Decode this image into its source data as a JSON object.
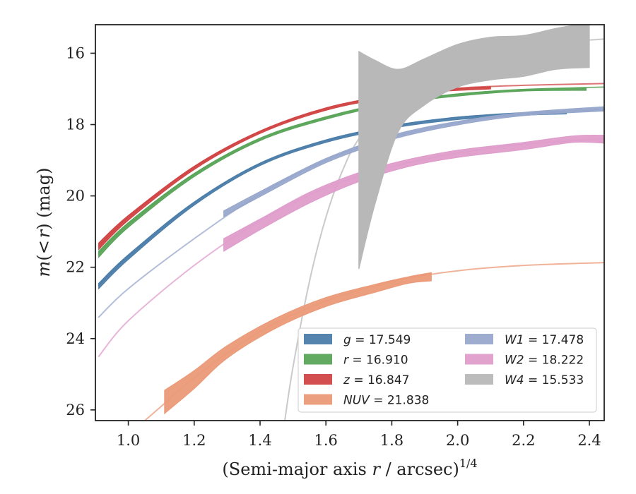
{
  "chart_data": {
    "type": "line",
    "xlabel_main": "(Semi-major axis ",
    "xlabel_var": "r",
    "xlabel_rest": " / arcsec)",
    "xlabel_sup": "1/4",
    "ylabel_m": "m",
    "ylabel_paren_open": "(",
    "ylabel_lt": "<",
    "ylabel_r": "r",
    "ylabel_rest": ") (mag)",
    "xlim": [
      0.9,
      2.445
    ],
    "ylim": [
      26.3,
      15.2
    ],
    "y_inverted": true,
    "grid": false,
    "legend_position": "lower-right",
    "xticks": [
      "1.0",
      "1.2",
      "1.4",
      "1.6",
      "1.8",
      "2.0",
      "2.2",
      "2.4"
    ],
    "xtick_values": [
      1.0,
      1.2,
      1.4,
      1.6,
      1.8,
      2.0,
      2.2,
      2.4
    ],
    "yticks": [
      "16",
      "18",
      "20",
      "22",
      "24",
      "26"
    ],
    "ytick_values": [
      16,
      18,
      20,
      22,
      24,
      26
    ],
    "series": [
      {
        "key": "g",
        "legend_var": "g",
        "legend_value": " = 17.549",
        "color": "#4c7eaa",
        "model_x": [
          0.91,
          1.0,
          1.2,
          1.4,
          1.6,
          1.8,
          2.0,
          2.2,
          2.445
        ],
        "model_y": [
          22.5,
          21.7,
          20.2,
          19.1,
          18.45,
          18.05,
          17.8,
          17.67,
          17.58
        ],
        "band_x": [
          0.91,
          1.0,
          1.2,
          1.4,
          1.6,
          1.8,
          2.0,
          2.2,
          2.33
        ],
        "band_lo": [
          22.45,
          21.65,
          20.17,
          19.08,
          18.43,
          18.03,
          17.79,
          17.67,
          17.63
        ],
        "band_hi": [
          22.6,
          21.78,
          20.26,
          19.15,
          18.5,
          18.1,
          17.86,
          17.74,
          17.7
        ]
      },
      {
        "key": "r",
        "legend_var": "r",
        "legend_value": " = 16.910",
        "color": "#5aa55a",
        "model_x": [
          0.91,
          1.0,
          1.2,
          1.4,
          1.6,
          1.8,
          2.0,
          2.2,
          2.445
        ],
        "model_y": [
          21.6,
          20.8,
          19.4,
          18.4,
          17.8,
          17.38,
          17.15,
          17.02,
          16.95
        ],
        "band_x": [
          0.91,
          1.0,
          1.2,
          1.4,
          1.6,
          1.8,
          2.0,
          2.2,
          2.39
        ],
        "band_lo": [
          21.55,
          20.75,
          19.37,
          18.38,
          17.78,
          17.37,
          17.14,
          17.01,
          16.97
        ],
        "band_hi": [
          21.72,
          20.88,
          19.46,
          18.45,
          17.85,
          17.43,
          17.2,
          17.06,
          17.04
        ]
      },
      {
        "key": "z",
        "legend_var": "z",
        "legend_value": " = 16.847",
        "color": "#d14545",
        "model_x": [
          0.91,
          1.0,
          1.2,
          1.4,
          1.6,
          1.8,
          2.0,
          2.2,
          2.445
        ],
        "model_y": [
          21.4,
          20.6,
          19.2,
          18.2,
          17.55,
          17.18,
          16.98,
          16.9,
          16.85
        ],
        "band_x": [
          0.91,
          1.0,
          1.2,
          1.4,
          1.6,
          1.8,
          1.95,
          2.1
        ],
        "band_lo": [
          21.32,
          20.55,
          19.17,
          18.18,
          17.53,
          17.17,
          17.02,
          16.94
        ],
        "band_hi": [
          21.5,
          20.68,
          19.26,
          18.25,
          17.6,
          17.23,
          17.07,
          17.0
        ]
      },
      {
        "key": "NUV",
        "legend_var": "NUV",
        "legend_value": " = 21.838",
        "color": "#eb9a78",
        "model_x": [
          1.05,
          1.1,
          1.2,
          1.4,
          1.6,
          1.8,
          2.0,
          2.2,
          2.445
        ],
        "model_y": [
          26.3,
          25.9,
          25.1,
          23.8,
          22.95,
          22.4,
          22.1,
          21.95,
          21.87
        ],
        "band_x": [
          1.11,
          1.2,
          1.3,
          1.45,
          1.6,
          1.75,
          1.85,
          1.92
        ],
        "band_lo": [
          25.45,
          24.9,
          24.2,
          23.42,
          22.85,
          22.48,
          22.27,
          22.15
        ],
        "band_hi": [
          26.1,
          25.4,
          24.55,
          23.7,
          23.1,
          22.7,
          22.45,
          22.38
        ]
      },
      {
        "key": "W1",
        "legend_var": "W1",
        "legend_value": " = 17.478",
        "color": "#98a8cc",
        "model_x": [
          0.91,
          1.0,
          1.2,
          1.4,
          1.6,
          1.8,
          2.0,
          2.2,
          2.445
        ],
        "model_y": [
          23.4,
          22.6,
          21.2,
          19.95,
          19.0,
          18.35,
          17.95,
          17.7,
          17.55
        ],
        "band_x": [
          1.29,
          1.4,
          1.6,
          1.8,
          2.0,
          2.2,
          2.445
        ],
        "band_lo": [
          20.42,
          19.88,
          18.95,
          18.3,
          17.91,
          17.66,
          17.5
        ],
        "band_hi": [
          20.58,
          20.02,
          19.07,
          18.42,
          18.01,
          17.75,
          17.62
        ]
      },
      {
        "key": "W2",
        "legend_var": "W2",
        "legend_value": " = 18.222",
        "color": "#df9dcb",
        "model_x": [
          0.91,
          1.0,
          1.2,
          1.4,
          1.6,
          1.8,
          2.0,
          2.2,
          2.445
        ],
        "model_y": [
          24.5,
          23.5,
          21.95,
          20.7,
          19.78,
          19.18,
          18.8,
          18.55,
          18.4
        ],
        "band_x": [
          1.29,
          1.4,
          1.55,
          1.7,
          1.85,
          2.0,
          2.2,
          2.35,
          2.445
        ],
        "band_lo": [
          21.2,
          20.65,
          19.9,
          19.35,
          18.98,
          18.72,
          18.5,
          18.32,
          18.3
        ],
        "band_hi": [
          21.55,
          20.95,
          20.2,
          19.6,
          19.18,
          18.92,
          18.7,
          18.5,
          18.52
        ]
      },
      {
        "key": "W4",
        "legend_var": "W4",
        "legend_value": " = 15.533",
        "color": "#b8b8b8",
        "model_x": [
          1.475,
          1.5,
          1.55,
          1.6,
          1.65,
          1.7,
          1.8,
          1.9,
          2.0,
          2.2,
          2.445
        ],
        "model_y": [
          26.3,
          24.8,
          22.4,
          20.6,
          19.3,
          18.4,
          17.25,
          16.6,
          16.2,
          15.8,
          15.6
        ],
        "band_x": [
          1.7,
          1.75,
          1.82,
          1.9,
          2.0,
          2.1,
          2.2,
          2.3,
          2.4
        ],
        "band_lo": [
          15.95,
          16.2,
          16.45,
          16.15,
          15.75,
          15.55,
          15.5,
          15.3,
          15.15
        ],
        "band_hi": [
          22.05,
          20.2,
          18.2,
          17.45,
          16.95,
          16.75,
          16.65,
          16.45,
          16.4
        ]
      }
    ]
  }
}
